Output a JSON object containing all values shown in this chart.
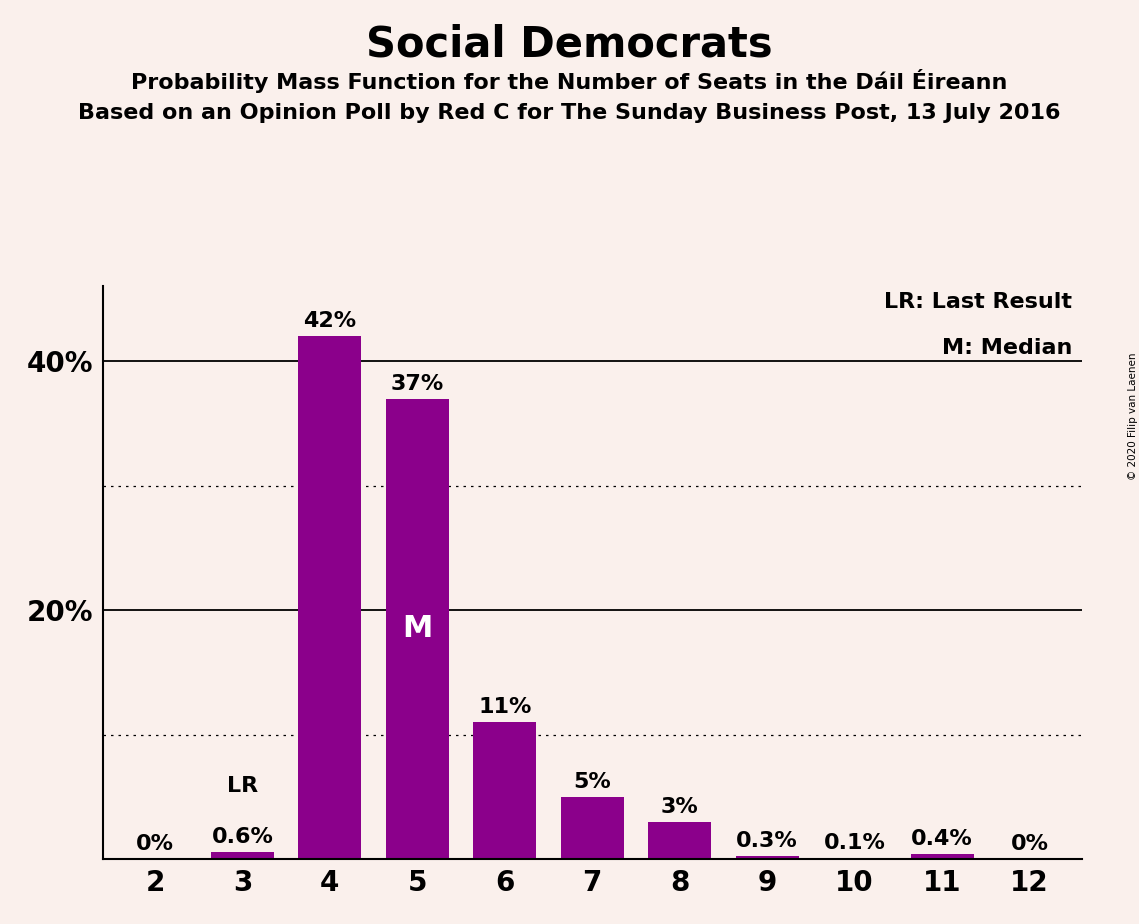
{
  "title": "Social Democrats",
  "subtitle1": "Probability Mass Function for the Number of Seats in the Dáil Éireann",
  "subtitle2": "Based on an Opinion Poll by Red C for The Sunday Business Post, 13 July 2016",
  "copyright": "© 2020 Filip van Laenen",
  "categories": [
    2,
    3,
    4,
    5,
    6,
    7,
    8,
    9,
    10,
    11,
    12
  ],
  "values": [
    0.0,
    0.6,
    42.0,
    37.0,
    11.0,
    5.0,
    3.0,
    0.3,
    0.1,
    0.4,
    0.0
  ],
  "labels": [
    "0%",
    "0.6%",
    "42%",
    "37%",
    "11%",
    "5%",
    "3%",
    "0.3%",
    "0.1%",
    "0.4%",
    "0%"
  ],
  "bar_color": "#8B008B",
  "background_color": "#FAF0EC",
  "median_bar": 5,
  "lr_bar": 3,
  "legend_lr": "LR: Last Result",
  "legend_m": "M: Median",
  "yticks": [
    0,
    10,
    20,
    30,
    40
  ],
  "ytick_labels": [
    "",
    "",
    "20%",
    "",
    "40%"
  ],
  "ylim": [
    0,
    46
  ],
  "title_fontsize": 30,
  "subtitle_fontsize": 16,
  "label_fontsize": 16,
  "tick_fontsize": 20,
  "legend_fontsize": 16,
  "dotted_lines": [
    10,
    30
  ],
  "solid_lines": [
    20,
    40
  ]
}
